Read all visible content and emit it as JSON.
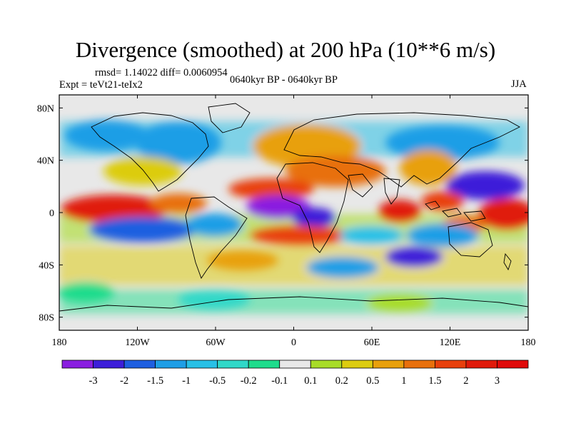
{
  "title": "Divergence (smoothed) at 200 hPa (10**6 m/s)",
  "stats": "rmsd= 1.14022 diff= 0.0060954",
  "experiment": "Expt = teVt21-teIx2",
  "period": "0640kyr BP - 0640kyr BP",
  "season": "JJA",
  "axes": {
    "lat_labels": [
      "80N",
      "40N",
      "0",
      "40S",
      "80S"
    ],
    "lat_values": [
      80,
      40,
      0,
      -40,
      -80
    ],
    "lon_labels": [
      "180",
      "120W",
      "60W",
      "0",
      "60E",
      "120E",
      "180"
    ],
    "lon_values": [
      -180,
      -120,
      -60,
      0,
      60,
      120,
      180
    ],
    "lat_range": [
      -90,
      90
    ],
    "lon_range": [
      -180,
      180
    ]
  },
  "colorbar": {
    "labels": [
      "-3",
      "-2",
      "-1.5",
      "-1",
      "-0.5",
      "-0.2",
      "-0.1",
      "0.1",
      "0.2",
      "0.5",
      "1",
      "1.5",
      "2",
      "3"
    ],
    "colors": [
      "#8a1ee0",
      "#3d1ed9",
      "#1e5fe0",
      "#1e9ee6",
      "#28c0e6",
      "#30d8c8",
      "#1edc8c",
      "#e8e8e8",
      "#a8dc28",
      "#dccc10",
      "#e8a00c",
      "#e8700c",
      "#e8400c",
      "#e01a0a",
      "#e00a0a"
    ]
  },
  "colors": {
    "background": "#e8e8e8",
    "coast": "#000000"
  }
}
